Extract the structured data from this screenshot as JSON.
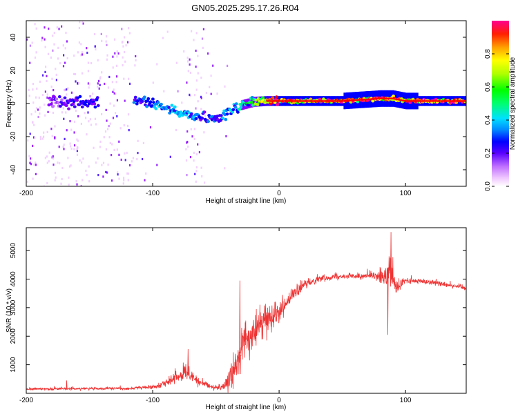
{
  "title": "GN05.2025.295.17.26.R04",
  "colors": {
    "snr_line": "#ee3333",
    "colormap": [
      "#ffffff",
      "#f0c8ff",
      "#c070ff",
      "#8a00ff",
      "#3a00ff",
      "#0000ff",
      "#0088ff",
      "#00d8ff",
      "#00ff90",
      "#00ff00",
      "#b0ff00",
      "#ffff00",
      "#ffb000",
      "#ff5000",
      "#ff0000",
      "#ff0090"
    ]
  },
  "chart_data": [
    {
      "type": "heatmap",
      "name": "spectrogram",
      "xlabel": "Height of straight line (km)",
      "ylabel": "Frequency (Hz)",
      "xlim": [
        -200,
        148
      ],
      "ylim": [
        -50,
        50
      ],
      "xticks": [
        -200,
        -100,
        0,
        100
      ],
      "yticks": [
        -40,
        -20,
        0,
        20,
        40
      ],
      "colorbar": {
        "label": "Normalized spectral amplitude",
        "range": [
          0,
          1
        ],
        "ticks": [
          "0.0",
          "0.2",
          "0.4",
          "0.6",
          "0.8"
        ]
      },
      "ridge": {
        "x": [
          -180,
          -160,
          -145,
          -110,
          -100,
          -90,
          -80,
          -70,
          -60,
          -52,
          -45,
          -38,
          -30,
          -20,
          -10,
          0,
          20,
          50,
          80,
          90,
          100,
          120,
          148
        ],
        "freq": [
          1,
          1,
          1,
          1.5,
          0,
          -3,
          -5,
          -7,
          -8,
          -9,
          -8,
          -4,
          -1,
          1,
          1.5,
          1.5,
          1.5,
          1.5,
          3,
          3,
          1.5,
          1.5,
          1.5
        ],
        "amplitude": [
          0.2,
          0.3,
          0.3,
          0.35,
          0.4,
          0.45,
          0.45,
          0.4,
          0.35,
          0.35,
          0.4,
          0.45,
          0.5,
          0.65,
          0.8,
          0.9,
          0.95,
          0.95,
          0.9,
          0.95,
          0.95,
          0.95,
          0.95
        ]
      }
    },
    {
      "type": "line",
      "name": "snr",
      "xlabel": "Height of straight line (km)",
      "ylabel": "SNR (10 * v/v)",
      "xlim": [
        -200,
        148
      ],
      "ylim": [
        0,
        5800
      ],
      "xticks": [
        -200,
        -100,
        0,
        100
      ],
      "yticks": [
        1000,
        2000,
        3000,
        4000,
        5000
      ],
      "envelope": {
        "x": [
          -200,
          -170,
          -120,
          -100,
          -85,
          -75,
          -70,
          -62,
          -50,
          -42,
          -38,
          -32,
          -28,
          -20,
          -10,
          0,
          10,
          20,
          30,
          45,
          60,
          75,
          85,
          88,
          90,
          93,
          100,
          120,
          148
        ],
        "mean": [
          150,
          160,
          170,
          220,
          450,
          700,
          650,
          350,
          200,
          260,
          550,
          1300,
          1700,
          2100,
          2600,
          2900,
          3400,
          3800,
          4000,
          4100,
          4100,
          4100,
          4000,
          4300,
          3900,
          3700,
          3950,
          3900,
          3700
        ],
        "noise": [
          60,
          60,
          60,
          90,
          220,
          320,
          300,
          160,
          120,
          200,
          700,
          900,
          800,
          700,
          600,
          500,
          350,
          200,
          150,
          120,
          120,
          140,
          500,
          700,
          600,
          400,
          120,
          120,
          120
        ]
      },
      "spikes": [
        {
          "x": -168,
          "y": 450
        },
        {
          "x": -72,
          "y": 1550
        },
        {
          "x": -31,
          "y": 3950
        },
        {
          "x": 87,
          "y": 4800
        },
        {
          "x": 88.5,
          "y": 5650
        },
        {
          "x": 86,
          "y": 2050
        }
      ]
    }
  ]
}
